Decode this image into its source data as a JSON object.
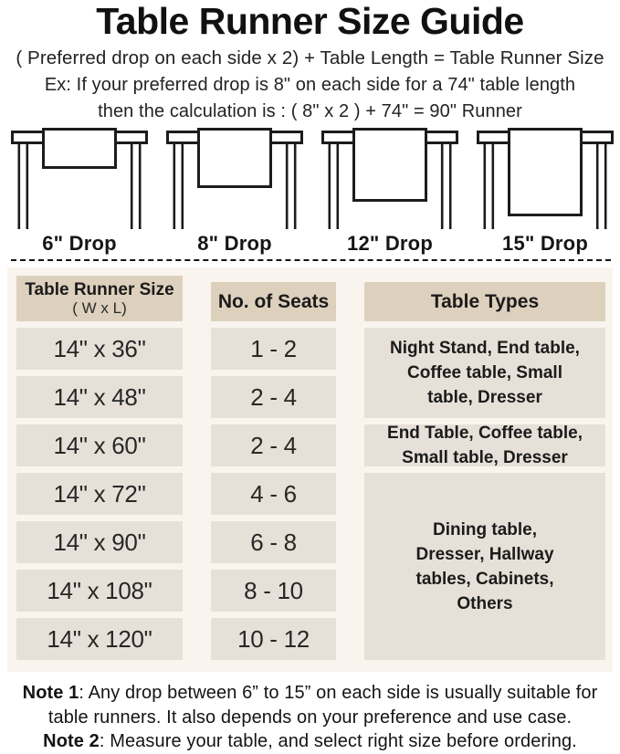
{
  "header": {
    "title": "Table Runner Size Guide",
    "formula": "( Preferred drop on each side x 2) + Table Length = Table Runner Size",
    "example_line1": "Ex: If your preferred drop is 8\" on each side for a 74\" table length",
    "example_line2": "then the calculation is : ( 8\" x 2 ) + 74\" = 90\" Runner"
  },
  "illustrations": [
    {
      "label": "6\" Drop",
      "drop_h": 42
    },
    {
      "label": "8\" Drop",
      "drop_h": 63
    },
    {
      "label": "12\" Drop",
      "drop_h": 78
    },
    {
      "label": "15\" Drop",
      "drop_h": 94
    }
  ],
  "size_table": {
    "headers": {
      "col1_line1": "Table Runner Size",
      "col1_line2": "( W x L)",
      "col2": "No. of Seats",
      "col3": "Table Types"
    },
    "rows": [
      {
        "size": "14\" x 36\"",
        "seats": "1 - 2"
      },
      {
        "size": "14\" x 48\"",
        "seats": "2 - 4"
      },
      {
        "size": "14\" x 60\"",
        "seats": "2 - 4"
      },
      {
        "size": "14\" x 72\"",
        "seats": "4 - 6"
      },
      {
        "size": "14\" x 90\"",
        "seats": "6 - 8"
      },
      {
        "size": "14\" x 108\"",
        "seats": "8 - 10"
      },
      {
        "size": "14\" x 120\"",
        "seats": "10 - 12"
      }
    ],
    "table_types": [
      {
        "spans_rows": "1-2",
        "lines": [
          "Night Stand, End table,",
          "Coffee table, Small",
          "table, Dresser"
        ]
      },
      {
        "spans_rows": "3",
        "lines": [
          "End Table, Coffee table,",
          "Small table, Dresser"
        ]
      },
      {
        "spans_rows": "4-7",
        "lines": [
          "Dining table,",
          "Dresser, Hallway",
          "tables, Cabinets,",
          "Others"
        ]
      }
    ]
  },
  "notes": {
    "note1_label": "Note 1",
    "note1_line1": ": Any drop between 6” to 15” on each side is usually suitable for",
    "note1_line2": "table runners. It also depends on your preference and use case.",
    "note2_label": "Note 2",
    "note2_line1": ": Measure your table, and select right size before ordering."
  },
  "colors": {
    "panel_bg": "#faf4ee",
    "header_cell_bg": "#ddd1bd",
    "data_cell_bg": "#e7e0d8",
    "line_color": "#1c1c1c",
    "text_color": "#1d1d1d"
  }
}
